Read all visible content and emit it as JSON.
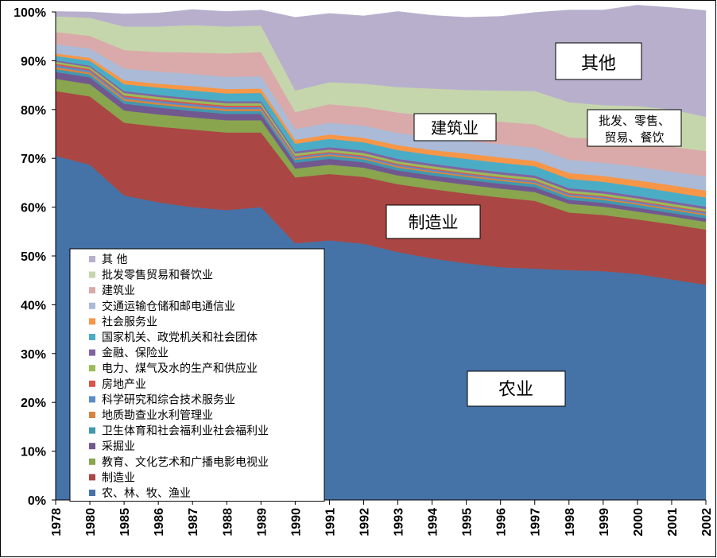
{
  "chart_data": {
    "type": "area",
    "stacked": true,
    "ylim": [
      0,
      100
    ],
    "y_ticks": [
      "0%",
      "10%",
      "20%",
      "30%",
      "40%",
      "50%",
      "60%",
      "70%",
      "80%",
      "90%",
      "100%"
    ],
    "categories": [
      "1978",
      "1980",
      "1985",
      "1986",
      "1987",
      "1988",
      "1989",
      "1990",
      "1991",
      "1992",
      "1993",
      "1994",
      "1995",
      "1996",
      "1997",
      "1998",
      "1999",
      "2000",
      "2001",
      "2002"
    ],
    "series": [
      {
        "name": "农、林、牧、渔业",
        "color": "#4572A7",
        "values": [
          70.5,
          68.7,
          62.4,
          61,
          60,
          59.4,
          60,
          52.6,
          53.2,
          52.5,
          50.8,
          49.5,
          48.5,
          47.7,
          47.4,
          47.1,
          46.9,
          46.3,
          45.2,
          44.1
        ]
      },
      {
        "name": "制造业",
        "color": "#AA4643",
        "values": [
          13.3,
          14.0,
          14.9,
          15.5,
          15.9,
          15.9,
          15.3,
          13.5,
          13.6,
          13.7,
          13.9,
          14.2,
          14.3,
          14.3,
          13.9,
          11.8,
          11.5,
          11.2,
          11.3,
          11.3
        ]
      },
      {
        "name": "教育、文化艺术和广播电影电视业",
        "color": "#89A54E",
        "values": [
          2.5,
          2.5,
          2.5,
          2.5,
          2.5,
          2.5,
          2.5,
          1.8,
          1.9,
          1.9,
          1.8,
          1.8,
          1.8,
          1.8,
          1.8,
          1.8,
          1.7,
          1.6,
          1.6,
          1.6
        ]
      },
      {
        "name": "采掘业",
        "color": "#71588F",
        "values": [
          1.4,
          1.4,
          1.4,
          1.4,
          1.3,
          1.3,
          1.3,
          1.2,
          1.2,
          1.1,
          1.0,
          1.0,
          1.0,
          1.0,
          1.0,
          0.8,
          0.8,
          0.8,
          0.7,
          0.7
        ]
      },
      {
        "name": "卫生体育和社会福利业社会福利业",
        "color": "#4198AF",
        "values": [
          0.6,
          0.6,
          0.6,
          0.6,
          0.6,
          0.6,
          0.6,
          0.6,
          0.6,
          0.6,
          0.6,
          0.6,
          0.6,
          0.6,
          0.6,
          0.6,
          0.6,
          0.6,
          0.6,
          0.6
        ]
      },
      {
        "name": "地质勘查业水利管理业",
        "color": "#DB843D",
        "values": [
          0.4,
          0.4,
          0.4,
          0.4,
          0.4,
          0.4,
          0.4,
          0.3,
          0.3,
          0.3,
          0.3,
          0.3,
          0.3,
          0.3,
          0.3,
          0.3,
          0.3,
          0.3,
          0.3,
          0.3
        ]
      },
      {
        "name": "科学研究和综合技术服务业",
        "color": "#5B8CC8",
        "values": [
          0.4,
          0.4,
          0.4,
          0.4,
          0.4,
          0.4,
          0.4,
          0.3,
          0.3,
          0.3,
          0.3,
          0.3,
          0.3,
          0.3,
          0.3,
          0.3,
          0.3,
          0.3,
          0.3,
          0.3
        ]
      },
      {
        "name": "房地产业",
        "color": "#D9534F",
        "values": [
          0.3,
          0.3,
          0.3,
          0.3,
          0.3,
          0.3,
          0.3,
          0.2,
          0.2,
          0.2,
          0.2,
          0.2,
          0.2,
          0.2,
          0.2,
          0.2,
          0.2,
          0.2,
          0.2,
          0.2
        ]
      },
      {
        "name": "电力、煤气及水的生产和供应业",
        "color": "#9BBB59",
        "values": [
          0.4,
          0.4,
          0.5,
          0.5,
          0.5,
          0.5,
          0.5,
          0.5,
          0.5,
          0.5,
          0.5,
          0.5,
          0.5,
          0.5,
          0.5,
          0.5,
          0.5,
          0.5,
          0.5,
          0.5
        ]
      },
      {
        "name": "金融、保险业",
        "color": "#8064A2",
        "values": [
          0.3,
          0.3,
          0.4,
          0.4,
          0.4,
          0.4,
          0.4,
          0.4,
          0.5,
          0.5,
          0.5,
          0.5,
          0.5,
          0.5,
          0.5,
          0.5,
          0.5,
          0.5,
          0.5,
          0.5
        ]
      },
      {
        "name": "国家机关、政党机关和社会团体",
        "color": "#4BACC6",
        "values": [
          0.9,
          1.0,
          1.4,
          1.5,
          1.6,
          1.6,
          1.7,
          1.6,
          1.7,
          1.7,
          1.8,
          1.8,
          1.9,
          1.9,
          1.9,
          1.9,
          1.9,
          1.9,
          1.9,
          1.9
        ]
      },
      {
        "name": "社会服务业",
        "color": "#F79646",
        "values": [
          0.5,
          0.6,
          0.8,
          0.8,
          0.9,
          0.9,
          0.9,
          0.8,
          0.9,
          0.9,
          1.0,
          1.0,
          1.1,
          1.1,
          1.1,
          1.2,
          1.2,
          1.3,
          1.4,
          1.4
        ]
      },
      {
        "name": "交通运输仓储和邮电通信业",
        "color": "#AABAD7",
        "values": [
          1.9,
          1.9,
          2.4,
          2.5,
          2.5,
          2.5,
          2.5,
          2.2,
          2.4,
          2.5,
          2.5,
          2.6,
          2.6,
          2.7,
          2.7,
          2.7,
          2.7,
          2.8,
          2.8,
          2.9
        ]
      },
      {
        "name": "建筑业",
        "color": "#D9AAA9",
        "values": [
          2.5,
          2.6,
          3.8,
          4.0,
          4.4,
          4.8,
          5.0,
          3.5,
          3.8,
          3.8,
          4.2,
          4.3,
          4.4,
          4.6,
          4.8,
          4.6,
          4.9,
          5.0,
          5.1,
          5.2
        ]
      },
      {
        "name": "批发零售贸易和餐饮业",
        "color": "#C6D6AC",
        "values": [
          3.2,
          3.7,
          4.8,
          5.2,
          5.6,
          5.5,
          5.4,
          4.4,
          4.5,
          4.8,
          5.2,
          5.7,
          6.0,
          6.4,
          6.8,
          7.2,
          6.9,
          7.4,
          7.6,
          7.0
        ]
      },
      {
        "name": "其  他",
        "color": "#B8AFCC",
        "values": [
          1.0,
          1.2,
          2.6,
          2.8,
          3.2,
          3.1,
          3.2,
          15.0,
          14.1,
          13.9,
          15.5,
          15.0,
          14.9,
          15.2,
          16.1,
          18.9,
          19.5,
          20.7,
          20.9,
          21.8
        ]
      }
    ],
    "legend": {
      "position": "lower-left",
      "entries": [
        "其  他",
        "批发零售贸易和餐饮业",
        "建筑业",
        "交通运输仓储和邮电通信业",
        "社会服务业",
        "国家机关、政党机关和社会团体",
        "金融、保险业",
        "电力、煤气及水的生产和供应业",
        "房地产业",
        "科学研究和综合技术服务业",
        "地质勘查业水利管理业",
        "卫生体育和社会福利业社会福利业",
        "采掘业",
        "教育、文化艺术和广播电影电视业",
        "制造业",
        "农、林、牧、渔业"
      ]
    },
    "annotations": [
      {
        "text": "其他"
      },
      {
        "text_lines": [
          "批发、零售、",
          "贸易、餐饮"
        ]
      },
      {
        "text": "建筑业"
      },
      {
        "text": "制造业"
      },
      {
        "text": "农业"
      }
    ]
  }
}
